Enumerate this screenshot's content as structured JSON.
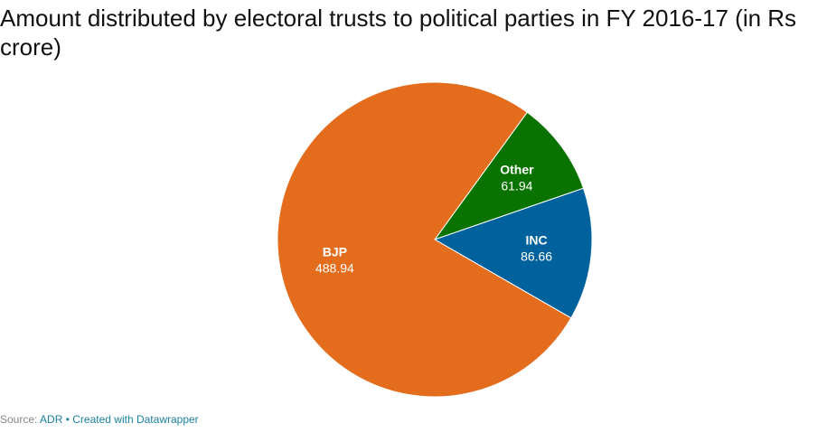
{
  "chart_data": {
    "type": "pie",
    "title": "Amount distributed by electoral trusts to political parties in FY 2016-17 (in Rs crore)",
    "categories": [
      "Other",
      "INC",
      "BJP"
    ],
    "values": [
      61.94,
      86.66,
      488.94
    ],
    "colors": [
      "#0a7300",
      "#00629d",
      "#e36c1d"
    ],
    "source_label": "Source:",
    "source": "ADR",
    "credit": "Created with Datawrapper"
  }
}
